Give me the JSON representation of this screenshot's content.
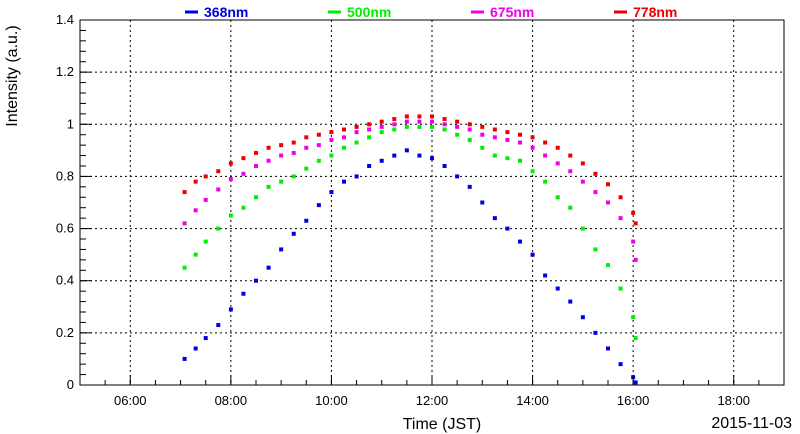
{
  "chart_data": {
    "type": "scatter",
    "xlabel": "Time (JST)",
    "ylabel": "Intensity (a.u.)",
    "date_label": "2015-11-03",
    "x_unit": "hour_of_day",
    "xlim": [
      5.0,
      19.0
    ],
    "ylim": [
      0,
      1.4
    ],
    "x_ticks": [
      {
        "value": 6,
        "label": "06:00"
      },
      {
        "value": 8,
        "label": "08:00"
      },
      {
        "value": 10,
        "label": "10:00"
      },
      {
        "value": 12,
        "label": "12:00"
      },
      {
        "value": 14,
        "label": "14:00"
      },
      {
        "value": 16,
        "label": "16:00"
      },
      {
        "value": 18,
        "label": "18:00"
      }
    ],
    "y_ticks": [
      {
        "value": 0,
        "label": "0"
      },
      {
        "value": 0.2,
        "label": "0.2"
      },
      {
        "value": 0.4,
        "label": "0.4"
      },
      {
        "value": 0.6,
        "label": "0.6"
      },
      {
        "value": 0.8,
        "label": "0.8"
      },
      {
        "value": 1.0,
        "label": "1"
      },
      {
        "value": 1.2,
        "label": "1.2"
      },
      {
        "value": 1.4,
        "label": "1.4"
      }
    ],
    "grid": true,
    "legend_position": "top",
    "series": [
      {
        "name": "368nm",
        "color": "#0000dd",
        "x": [
          7.08,
          7.3,
          7.5,
          7.75,
          8.0,
          8.25,
          8.5,
          8.75,
          9.0,
          9.25,
          9.5,
          9.75,
          10.0,
          10.25,
          10.5,
          10.75,
          11.0,
          11.25,
          11.5,
          11.75,
          12.0,
          12.25,
          12.5,
          12.75,
          13.0,
          13.25,
          13.5,
          13.75,
          14.0,
          14.25,
          14.5,
          14.75,
          15.0,
          15.25,
          15.5,
          15.75,
          16.0,
          16.05
        ],
        "y": [
          0.1,
          0.14,
          0.18,
          0.23,
          0.29,
          0.35,
          0.4,
          0.45,
          0.52,
          0.58,
          0.63,
          0.69,
          0.74,
          0.78,
          0.8,
          0.84,
          0.86,
          0.88,
          0.9,
          0.88,
          0.87,
          0.84,
          0.8,
          0.76,
          0.7,
          0.64,
          0.6,
          0.55,
          0.5,
          0.42,
          0.37,
          0.32,
          0.26,
          0.2,
          0.14,
          0.08,
          0.03,
          0.01
        ]
      },
      {
        "name": "500nm",
        "color": "#00ee00",
        "x": [
          7.08,
          7.3,
          7.5,
          7.75,
          8.0,
          8.25,
          8.5,
          8.75,
          9.0,
          9.25,
          9.5,
          9.75,
          10.0,
          10.25,
          10.5,
          10.75,
          11.0,
          11.25,
          11.5,
          11.75,
          12.0,
          12.25,
          12.5,
          12.75,
          13.0,
          13.25,
          13.5,
          13.75,
          14.0,
          14.25,
          14.5,
          14.75,
          15.0,
          15.25,
          15.5,
          15.75,
          16.0,
          16.05
        ],
        "y": [
          0.45,
          0.5,
          0.55,
          0.6,
          0.65,
          0.68,
          0.72,
          0.76,
          0.78,
          0.8,
          0.83,
          0.86,
          0.88,
          0.91,
          0.93,
          0.95,
          0.97,
          0.98,
          0.99,
          0.99,
          0.99,
          0.98,
          0.96,
          0.94,
          0.91,
          0.88,
          0.87,
          0.86,
          0.82,
          0.78,
          0.72,
          0.68,
          0.6,
          0.52,
          0.46,
          0.37,
          0.26,
          0.18
        ]
      },
      {
        "name": "675nm",
        "color": "#ee00ee",
        "x": [
          7.08,
          7.3,
          7.5,
          7.75,
          8.0,
          8.25,
          8.5,
          8.75,
          9.0,
          9.25,
          9.5,
          9.75,
          10.0,
          10.25,
          10.5,
          10.75,
          11.0,
          11.25,
          11.5,
          11.75,
          12.0,
          12.25,
          12.5,
          12.75,
          13.0,
          13.25,
          13.5,
          13.75,
          14.0,
          14.25,
          14.5,
          14.75,
          15.0,
          15.25,
          15.5,
          15.75,
          16.0,
          16.05
        ],
        "y": [
          0.62,
          0.67,
          0.71,
          0.75,
          0.79,
          0.81,
          0.84,
          0.86,
          0.88,
          0.89,
          0.91,
          0.92,
          0.94,
          0.95,
          0.97,
          0.98,
          0.99,
          1.0,
          1.01,
          1.01,
          1.01,
          1.0,
          0.99,
          0.98,
          0.96,
          0.95,
          0.94,
          0.93,
          0.91,
          0.88,
          0.85,
          0.82,
          0.78,
          0.74,
          0.7,
          0.64,
          0.55,
          0.48
        ]
      },
      {
        "name": "778nm",
        "color": "#ee0000",
        "x": [
          7.08,
          7.3,
          7.5,
          7.75,
          8.0,
          8.25,
          8.5,
          8.75,
          9.0,
          9.25,
          9.5,
          9.75,
          10.0,
          10.25,
          10.5,
          10.75,
          11.0,
          11.25,
          11.5,
          11.75,
          12.0,
          12.25,
          12.5,
          12.75,
          13.0,
          13.25,
          13.5,
          13.75,
          14.0,
          14.25,
          14.5,
          14.75,
          15.0,
          15.25,
          15.5,
          15.75,
          16.0,
          16.05
        ],
        "y": [
          0.74,
          0.78,
          0.8,
          0.82,
          0.85,
          0.87,
          0.89,
          0.91,
          0.92,
          0.93,
          0.95,
          0.96,
          0.97,
          0.98,
          0.99,
          1.0,
          1.01,
          1.02,
          1.03,
          1.03,
          1.03,
          1.02,
          1.01,
          1.0,
          0.99,
          0.98,
          0.97,
          0.96,
          0.95,
          0.93,
          0.91,
          0.88,
          0.85,
          0.81,
          0.77,
          0.72,
          0.66,
          0.62
        ]
      }
    ]
  }
}
